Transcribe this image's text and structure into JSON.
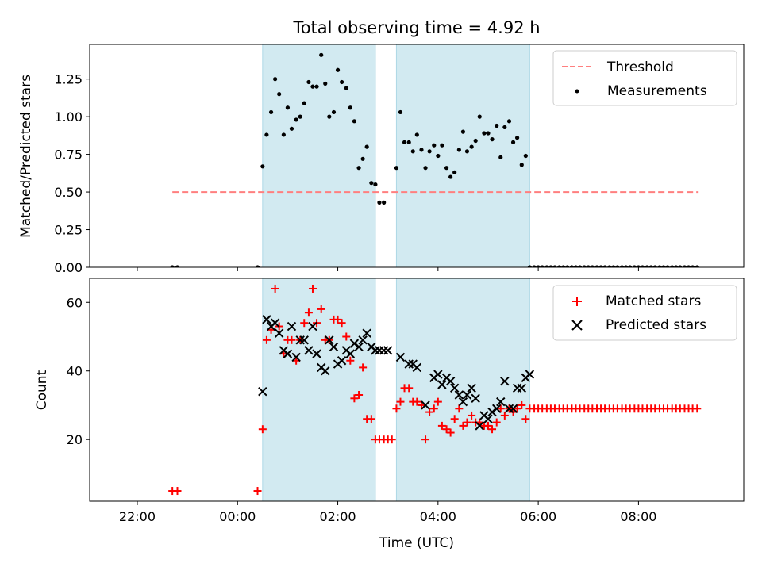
{
  "figure": {
    "title": "Total observing time = 4.92 h",
    "xlabel": "Time (UTC)"
  },
  "chart_data": [
    {
      "type": "scatter",
      "ylabel": "Matched/Predicted stars",
      "ylim": [
        0,
        1.48
      ],
      "yticks": [
        0.0,
        0.25,
        0.5,
        0.75,
        1.0,
        1.25
      ],
      "ytick_labels": [
        "0.00",
        "0.25",
        "0.50",
        "0.75",
        "1.00",
        "1.25"
      ],
      "xlim": [
        -2.95,
        10.1
      ],
      "grid": false,
      "legend": "top-right",
      "shaded_intervals": [
        [
          0.5,
          2.75
        ],
        [
          3.17,
          5.83
        ]
      ],
      "colors": {
        "threshold": "#ff7f7f",
        "points": "#000000",
        "shade": "#add8e6"
      },
      "series": [
        {
          "name": "Threshold",
          "kind": "dashed-line",
          "x": [
            -1.3,
            9.2
          ],
          "values": [
            0.5,
            0.5
          ]
        },
        {
          "name": "Measurements",
          "kind": "points",
          "x": [
            -1.3,
            -1.2,
            0.4,
            0.5,
            0.58,
            0.67,
            0.75,
            0.83,
            0.92,
            1.0,
            1.08,
            1.17,
            1.25,
            1.33,
            1.42,
            1.5,
            1.58,
            1.67,
            1.75,
            1.83,
            1.92,
            2.0,
            2.08,
            2.17,
            2.25,
            2.33,
            2.42,
            2.5,
            2.58,
            2.67,
            2.75,
            2.83,
            2.92,
            3.17,
            3.25,
            3.33,
            3.42,
            3.5,
            3.58,
            3.67,
            3.75,
            3.83,
            3.92,
            4.0,
            4.08,
            4.17,
            4.25,
            4.33,
            4.42,
            4.5,
            4.58,
            4.67,
            4.75,
            4.83,
            4.92,
            5.0,
            5.08,
            5.17,
            5.25,
            5.33,
            5.42,
            5.5,
            5.58,
            5.67,
            5.75,
            5.83,
            5.92,
            6.0,
            6.08,
            6.17,
            6.25,
            6.33,
            6.42,
            6.5,
            6.58,
            6.67,
            6.75,
            6.83,
            6.92,
            7.0,
            7.08,
            7.17,
            7.25,
            7.33,
            7.42,
            7.5,
            7.58,
            7.67,
            7.75,
            7.83,
            7.92,
            8.0,
            8.08,
            8.17,
            8.25,
            8.33,
            8.42,
            8.5,
            8.58,
            8.67,
            8.75,
            8.83,
            8.92,
            9.0,
            9.08,
            9.17
          ],
          "values": [
            0.0,
            0.0,
            0.0,
            0.67,
            0.88,
            1.03,
            1.25,
            1.15,
            0.88,
            1.06,
            0.92,
            0.98,
            1.0,
            1.09,
            1.23,
            1.2,
            1.2,
            1.41,
            1.22,
            1.0,
            1.03,
            1.31,
            1.23,
            1.19,
            1.06,
            0.97,
            0.66,
            0.72,
            0.8,
            0.56,
            0.55,
            0.43,
            0.43,
            0.66,
            1.03,
            0.83,
            0.83,
            0.77,
            0.88,
            0.78,
            0.66,
            0.77,
            0.81,
            0.74,
            0.81,
            0.66,
            0.6,
            0.63,
            0.78,
            0.9,
            0.77,
            0.8,
            0.84,
            1.0,
            0.89,
            0.89,
            0.85,
            0.94,
            0.73,
            0.93,
            0.97,
            0.83,
            0.86,
            0.68,
            0.74,
            0.0,
            0.0,
            0.0,
            0.0,
            0.0,
            0.0,
            0.0,
            0.0,
            0.0,
            0.0,
            0.0,
            0.0,
            0.0,
            0.0,
            0.0,
            0.0,
            0.0,
            0.0,
            0.0,
            0.0,
            0.0,
            0.0,
            0.0,
            0.0,
            0.0,
            0.0,
            0.0,
            0.0,
            0.0,
            0.0,
            0.0,
            0.0,
            0.0,
            0.0,
            0.0,
            0.0,
            0.0,
            0.0,
            0.0,
            0.0,
            0.0
          ]
        }
      ]
    },
    {
      "type": "scatter",
      "ylabel": "Count",
      "ylim": [
        2,
        67
      ],
      "yticks": [
        20,
        40,
        60
      ],
      "ytick_labels": [
        "20",
        "40",
        "60"
      ],
      "xlim": [
        -2.95,
        10.1
      ],
      "xticks": [
        -2,
        0,
        2,
        4,
        6,
        8
      ],
      "xtick_labels": [
        "22:00",
        "00:00",
        "02:00",
        "04:00",
        "06:00",
        "08:00"
      ],
      "grid": false,
      "legend": "top-right",
      "shaded_intervals": [
        [
          0.5,
          2.75
        ],
        [
          3.17,
          5.83
        ]
      ],
      "colors": {
        "matched": "#ff0000",
        "predicted": "#000000",
        "shade": "#add8e6"
      },
      "series": [
        {
          "name": "Matched stars",
          "kind": "plus",
          "x": [
            -1.3,
            -1.2,
            0.4,
            0.5,
            0.58,
            0.67,
            0.75,
            0.83,
            0.92,
            1.0,
            1.08,
            1.17,
            1.25,
            1.33,
            1.42,
            1.5,
            1.58,
            1.67,
            1.75,
            1.83,
            1.92,
            2.0,
            2.08,
            2.17,
            2.25,
            2.33,
            2.42,
            2.5,
            2.58,
            2.67,
            2.75,
            2.83,
            2.92,
            3.0,
            3.08,
            3.17,
            3.25,
            3.33,
            3.42,
            3.5,
            3.58,
            3.67,
            3.75,
            3.83,
            3.92,
            4.0,
            4.08,
            4.17,
            4.25,
            4.33,
            4.42,
            4.5,
            4.58,
            4.67,
            4.75,
            4.83,
            4.92,
            5.0,
            5.08,
            5.17,
            5.25,
            5.33,
            5.42,
            5.5,
            5.58,
            5.67,
            5.75,
            5.83,
            5.92,
            6.0,
            6.08,
            6.17,
            6.25,
            6.33,
            6.42,
            6.5,
            6.58,
            6.67,
            6.75,
            6.83,
            6.92,
            7.0,
            7.08,
            7.17,
            7.25,
            7.33,
            7.42,
            7.5,
            7.58,
            7.67,
            7.75,
            7.83,
            7.92,
            8.0,
            8.08,
            8.17,
            8.25,
            8.33,
            8.42,
            8.5,
            8.58,
            8.67,
            8.75,
            8.83,
            8.92,
            9.0,
            9.08,
            9.17
          ],
          "values": [
            5,
            5,
            5,
            23,
            49,
            52,
            64,
            53,
            45,
            49,
            49,
            43,
            49,
            54,
            57,
            64,
            54,
            58,
            49,
            49,
            55,
            55,
            54,
            50,
            43,
            32,
            33,
            41,
            26,
            26,
            20,
            20,
            20,
            20,
            20,
            29,
            31,
            35,
            35,
            31,
            31,
            30,
            20,
            28,
            29,
            31,
            24,
            23,
            22,
            26,
            29,
            24,
            25,
            27,
            25,
            25,
            24,
            24,
            23,
            25,
            29,
            27,
            29,
            28,
            29,
            30,
            26,
            29,
            29,
            29,
            29,
            29,
            29,
            29,
            29,
            29,
            29,
            29,
            29,
            29,
            29,
            29,
            29,
            29,
            29,
            29,
            29,
            29,
            29,
            29,
            29,
            29,
            29,
            29,
            29,
            29,
            29,
            29,
            29,
            29,
            29,
            29,
            29,
            29,
            29,
            29,
            29,
            29
          ]
        },
        {
          "name": "Predicted stars",
          "kind": "cross",
          "x": [
            0.5,
            0.58,
            0.67,
            0.75,
            0.83,
            0.92,
            1.0,
            1.08,
            1.17,
            1.25,
            1.33,
            1.42,
            1.5,
            1.58,
            1.67,
            1.75,
            1.83,
            1.92,
            2.0,
            2.08,
            2.17,
            2.25,
            2.33,
            2.42,
            2.5,
            2.58,
            2.67,
            2.75,
            2.83,
            2.92,
            3.0,
            3.25,
            3.42,
            3.5,
            3.58,
            3.75,
            3.92,
            4.0,
            4.08,
            4.17,
            4.25,
            4.33,
            4.42,
            4.5,
            4.58,
            4.67,
            4.75,
            4.83,
            4.92,
            5.0,
            5.08,
            5.17,
            5.25,
            5.33,
            5.42,
            5.5,
            5.58,
            5.67,
            5.75,
            5.83
          ],
          "values": [
            34,
            55,
            53,
            54,
            51,
            46,
            45,
            53,
            44,
            49,
            49,
            46,
            53,
            45,
            41,
            40,
            49,
            47,
            42,
            43,
            46,
            45,
            48,
            47,
            49,
            51,
            47,
            46,
            46,
            46,
            46,
            44,
            42,
            42,
            41,
            30,
            38,
            39,
            36,
            38,
            37,
            35,
            33,
            31,
            33,
            35,
            32,
            24,
            27,
            26,
            28,
            29,
            31,
            37,
            29,
            29,
            35,
            35,
            38,
            39
          ]
        }
      ]
    }
  ]
}
